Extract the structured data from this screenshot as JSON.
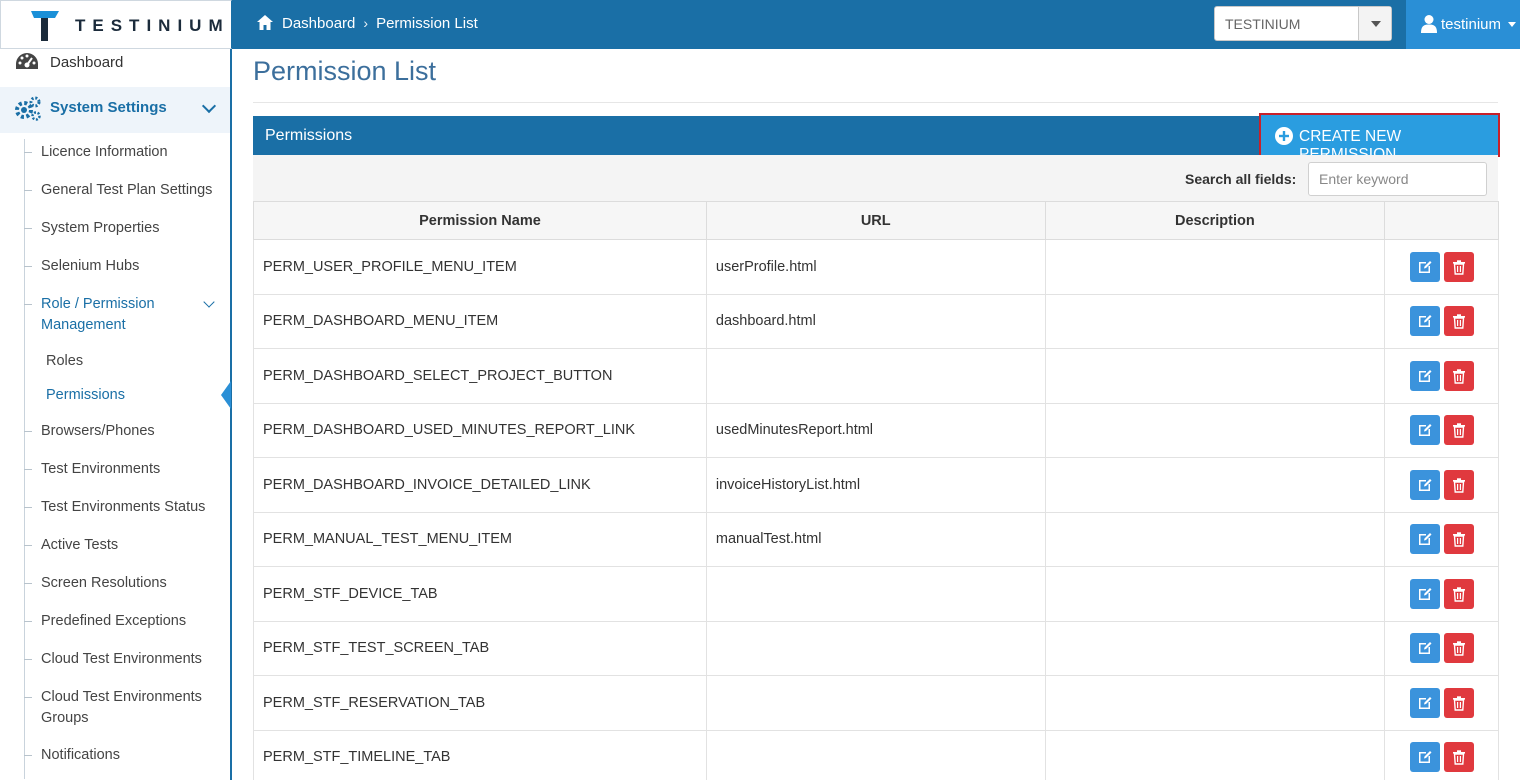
{
  "app": {
    "logo_text": "TESTINIUM"
  },
  "breadcrumb": {
    "home": "Dashboard",
    "current": "Permission List"
  },
  "project_select": {
    "value": "TESTINIUM"
  },
  "user": {
    "name": "testinium"
  },
  "sidebar": {
    "dashboard": "Dashboard",
    "system_settings": "System Settings",
    "items": [
      "Licence Information",
      "General Test Plan Settings",
      "System Properties",
      "Selenium Hubs",
      "Role / Permission Management",
      "Roles",
      "Permissions",
      "Browsers/Phones",
      "Test Environments",
      "Test Environments Status",
      "Active Tests",
      "Screen Resolutions",
      "Predefined Exceptions",
      "Cloud Test Environments",
      "Cloud Test Environments Groups",
      "Notifications"
    ]
  },
  "page": {
    "title": "Permission List"
  },
  "panel": {
    "title": "Permissions",
    "create_label": "CREATE NEW PERMISSION"
  },
  "search": {
    "label": "Search all fields:",
    "placeholder": "Enter keyword"
  },
  "table": {
    "columns": [
      "Permission Name",
      "URL",
      "Description"
    ],
    "rows": [
      {
        "name": "PERM_USER_PROFILE_MENU_ITEM",
        "url": "userProfile.html",
        "description": ""
      },
      {
        "name": "PERM_DASHBOARD_MENU_ITEM",
        "url": "dashboard.html",
        "description": ""
      },
      {
        "name": "PERM_DASHBOARD_SELECT_PROJECT_BUTTON",
        "url": "",
        "description": ""
      },
      {
        "name": "PERM_DASHBOARD_USED_MINUTES_REPORT_LINK",
        "url": "usedMinutesReport.html",
        "description": ""
      },
      {
        "name": "PERM_DASHBOARD_INVOICE_DETAILED_LINK",
        "url": "invoiceHistoryList.html",
        "description": ""
      },
      {
        "name": "PERM_MANUAL_TEST_MENU_ITEM",
        "url": "manualTest.html",
        "description": ""
      },
      {
        "name": "PERM_STF_DEVICE_TAB",
        "url": "",
        "description": ""
      },
      {
        "name": "PERM_STF_TEST_SCREEN_TAB",
        "url": "",
        "description": ""
      },
      {
        "name": "PERM_STF_RESERVATION_TAB",
        "url": "",
        "description": ""
      },
      {
        "name": "PERM_STF_TIMELINE_TAB",
        "url": "",
        "description": ""
      }
    ]
  },
  "colors": {
    "primary": "#1a6fa6",
    "accent": "#2a9de0",
    "edit": "#3b93dc",
    "delete": "#e0393e",
    "highlight_border": "#c8202a"
  },
  "icons": [
    "testinium-logo-icon",
    "home-icon",
    "user-icon",
    "dashboard-gauge-icon",
    "gears-icon",
    "chevron-down-icon",
    "plus-circle-icon",
    "edit-icon",
    "trash-icon"
  ]
}
